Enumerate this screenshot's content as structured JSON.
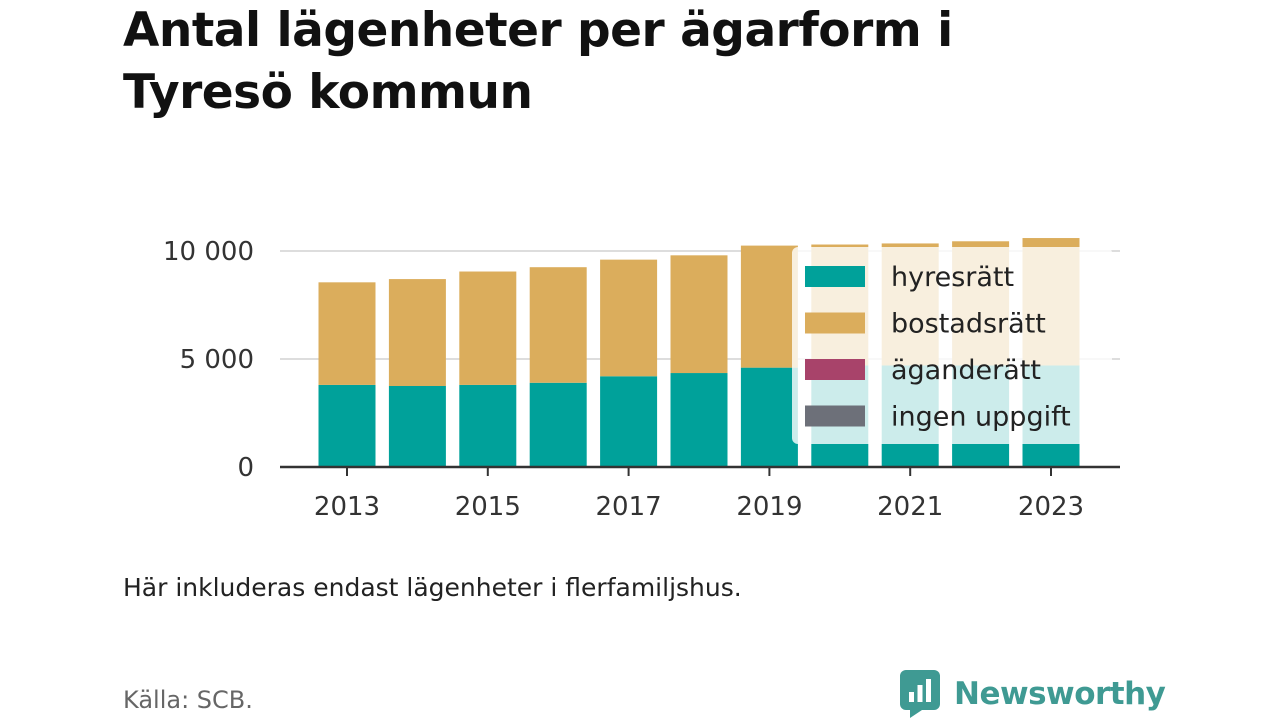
{
  "title": "Antal lägenheter per ägarform i Tyresö kommun",
  "note": "Här inkluderas endast lägenheter i flerfamiljshus.",
  "source": "Källa: SCB.",
  "brand": {
    "name": "Newsworthy",
    "icon": "newsworthy-logo-icon",
    "color": "#3f9a93"
  },
  "chart_data": {
    "type": "bar",
    "stacked": true,
    "categories": [
      "2013",
      "2014",
      "2015",
      "2016",
      "2017",
      "2018",
      "2019",
      "2020",
      "2021",
      "2022",
      "2023"
    ],
    "x_tick_labels": [
      "2013",
      "2015",
      "2017",
      "2019",
      "2021",
      "2023"
    ],
    "y_tick_labels": [
      "0",
      "5 000",
      "10 000"
    ],
    "y_ticks": [
      0,
      5000,
      10000
    ],
    "ylim": [
      0,
      10500
    ],
    "grid": true,
    "legend_position": "right",
    "series": [
      {
        "name": "hyresrätt",
        "color": "#00a19a",
        "values": [
          3800,
          3750,
          3800,
          3900,
          4200,
          4350,
          4600,
          4700,
          4700,
          4700,
          4700
        ]
      },
      {
        "name": "bostadsrätt",
        "color": "#dbad5c",
        "values": [
          4750,
          4950,
          5250,
          5350,
          5400,
          5450,
          5650,
          5600,
          5650,
          5750,
          5900
        ]
      },
      {
        "name": "äganderätt",
        "color": "#a8436a",
        "values": [
          0,
          0,
          0,
          0,
          0,
          0,
          0,
          0,
          0,
          0,
          0
        ]
      },
      {
        "name": "ingen uppgift",
        "color": "#6d7079",
        "values": [
          0,
          0,
          0,
          0,
          0,
          0,
          0,
          0,
          0,
          0,
          0
        ]
      }
    ]
  }
}
